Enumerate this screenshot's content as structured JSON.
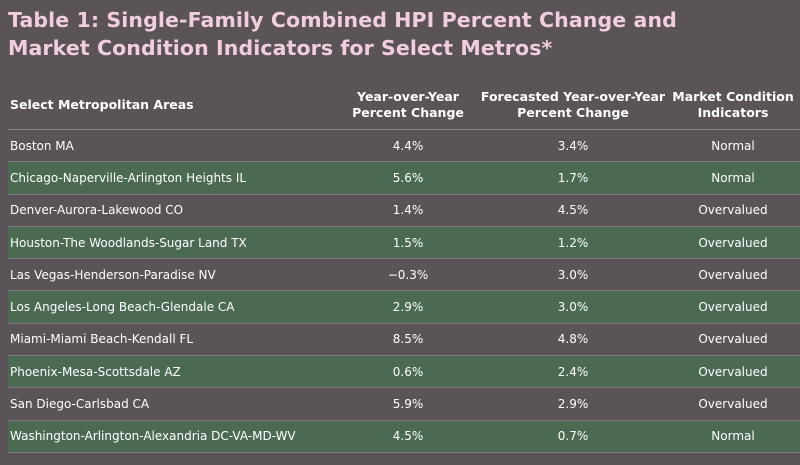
{
  "title": {
    "line1": "Table 1: Single-Family Combined HPI Percent Change and",
    "line2": "Market Condition Indicators for Select Metros*"
  },
  "columns": [
    "Select Metropolitan Areas",
    "Year-over-Year Percent Change",
    "Forecasted Year-over-Year Percent Change",
    "Market Condition Indicators"
  ],
  "column_lines": [
    [
      "Select Metropolitan Areas"
    ],
    [
      "Year-over-Year",
      "Percent Change"
    ],
    [
      "Forecasted Year-over-Year",
      "Percent Change"
    ],
    [
      "Market Condition",
      "Indicators"
    ]
  ],
  "rows": [
    [
      "Boston MA",
      "4.4%",
      "3.4%",
      "Normal"
    ],
    [
      "Chicago-Naperville-Arlington Heights IL",
      "5.6%",
      "1.7%",
      "Normal"
    ],
    [
      "Denver-Aurora-Lakewood CO",
      "1.4%",
      "4.5%",
      "Overvalued"
    ],
    [
      "Houston-The Woodlands-Sugar Land TX",
      "1.5%",
      "1.2%",
      "Overvalued"
    ],
    [
      "Las Vegas-Henderson-Paradise NV",
      "−0.3%",
      "3.0%",
      "Overvalued"
    ],
    [
      "Los Angeles-Long Beach-Glendale CA",
      "2.9%",
      "3.0%",
      "Overvalued"
    ],
    [
      "Miami-Miami Beach-Kendall FL",
      "8.5%",
      "4.8%",
      "Overvalued"
    ],
    [
      "Phoenix-Mesa-Scottsdale AZ",
      "0.6%",
      "2.4%",
      "Overvalued"
    ],
    [
      "San Diego-Carlsbad CA",
      "5.9%",
      "2.9%",
      "Overvalued"
    ],
    [
      "Washington-Arlington-Alexandria DC-VA-MD-WV",
      "4.5%",
      "0.7%",
      "Normal"
    ]
  ],
  "colors": {
    "background": "#5a5357",
    "band": "#4a6a52",
    "title": "#f2cde0"
  }
}
